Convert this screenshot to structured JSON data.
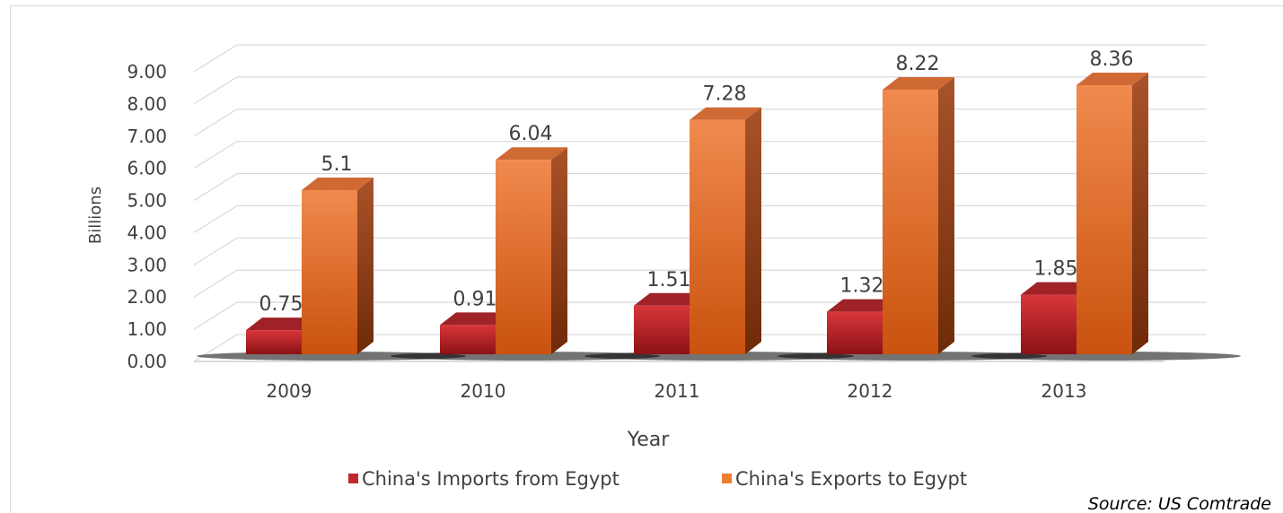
{
  "chart_data": {
    "type": "bar",
    "categories": [
      "2009",
      "2010",
      "2011",
      "2012",
      "2013"
    ],
    "series": [
      {
        "name": "China's Imports from Egypt",
        "values": [
          0.75,
          0.91,
          1.51,
          1.32,
          1.85
        ],
        "labels": [
          "0.75",
          "0.91",
          "1.51",
          "1.32",
          "1.85"
        ]
      },
      {
        "name": "China's Exports to Egypt",
        "values": [
          5.1,
          6.04,
          7.28,
          8.22,
          8.36
        ],
        "labels": [
          "5.1",
          "6.04",
          "7.28",
          "8.22",
          "8.36"
        ]
      }
    ],
    "y_ticks": [
      "0.00",
      "1.00",
      "2.00",
      "3.00",
      "4.00",
      "5.00",
      "6.00",
      "7.00",
      "8.00",
      "9.00"
    ],
    "ylim": [
      0,
      9
    ],
    "xlabel": "Year",
    "ylabel": "Billions",
    "legend_position": "bottom",
    "grid": true,
    "three_d": true,
    "colors": {
      "imports": "#c0282d",
      "exports": "#ed7d31"
    }
  },
  "source_note": "Source: US Comtrade"
}
